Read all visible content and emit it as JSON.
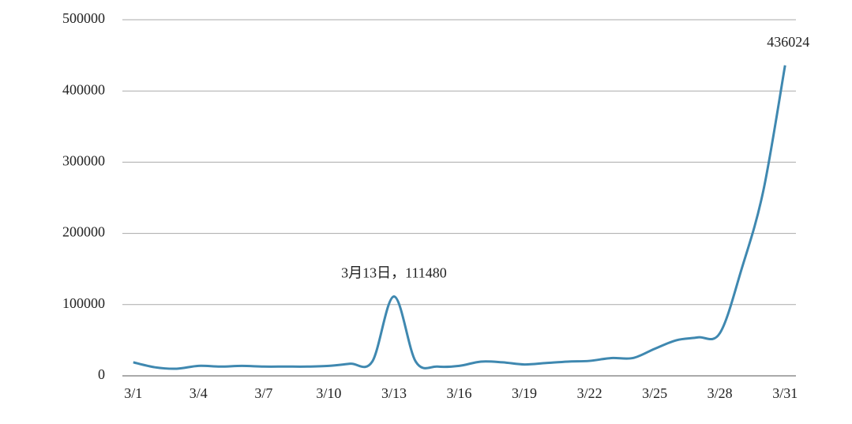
{
  "chart_data": {
    "type": "line",
    "categories": [
      "3/1",
      null,
      null,
      "3/4",
      null,
      null,
      "3/7",
      null,
      null,
      "3/10",
      null,
      null,
      "3/13",
      null,
      null,
      "3/16",
      null,
      null,
      "3/19",
      null,
      null,
      "3/22",
      null,
      null,
      "3/25",
      null,
      null,
      "3/28",
      null,
      null,
      "3/31"
    ],
    "values": [
      19000,
      12000,
      10000,
      14000,
      13000,
      14000,
      13000,
      13000,
      13000,
      14000,
      17000,
      20000,
      111480,
      20000,
      13000,
      14000,
      20000,
      19000,
      16000,
      18000,
      20000,
      21000,
      25000,
      25000,
      38000,
      50000,
      54000,
      60000,
      150000,
      260000,
      436024
    ],
    "value_labels": [
      null,
      null,
      null,
      null,
      null,
      null,
      null,
      null,
      null,
      null,
      null,
      null,
      "3月13日，111480",
      null,
      null,
      null,
      null,
      null,
      null,
      null,
      null,
      null,
      null,
      null,
      null,
      null,
      null,
      null,
      null,
      null,
      "436024"
    ],
    "color": "#3f88b0",
    "ylim": [
      0,
      500000
    ],
    "yticks": [
      0,
      100000,
      200000,
      300000,
      400000,
      500000
    ],
    "grid": true
  }
}
